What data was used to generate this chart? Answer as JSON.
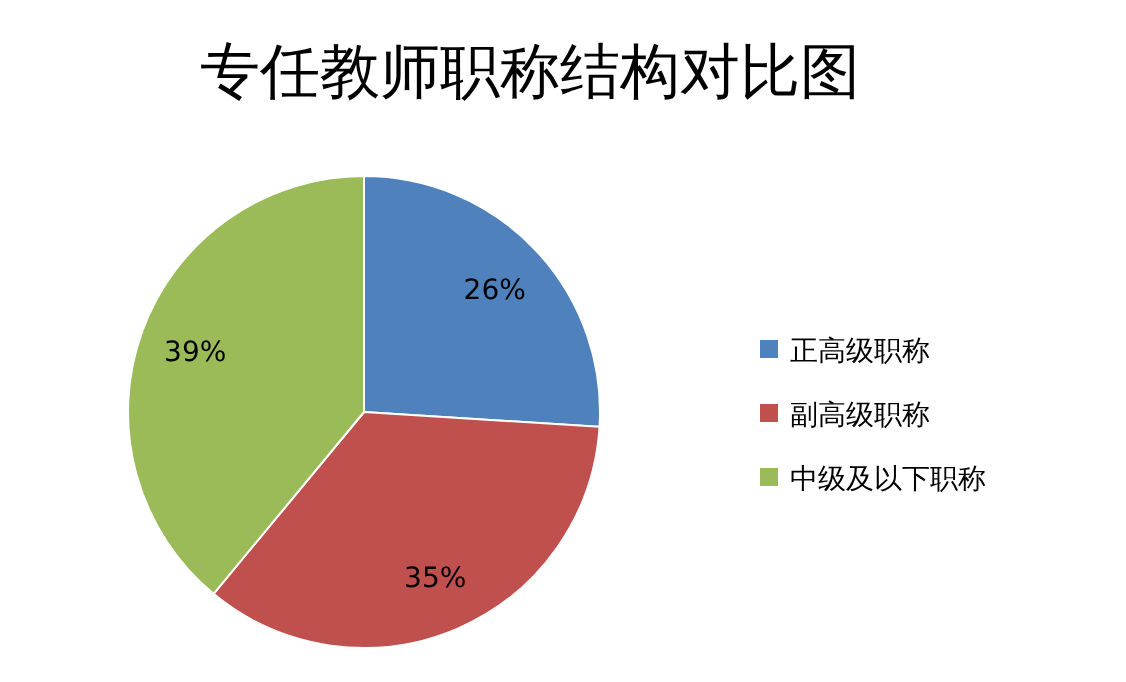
{
  "chart_data": {
    "type": "pie",
    "title": "专任教师职称结构对比图",
    "categories": [
      "正高级职称",
      "副高级职称",
      "中级及以下职称"
    ],
    "values": [
      26,
      35,
      39
    ],
    "value_labels": [
      "26%",
      "35%",
      "39%"
    ],
    "colors": [
      "#4f81bd",
      "#c0504d",
      "#9bbb59"
    ],
    "legend": "right"
  }
}
